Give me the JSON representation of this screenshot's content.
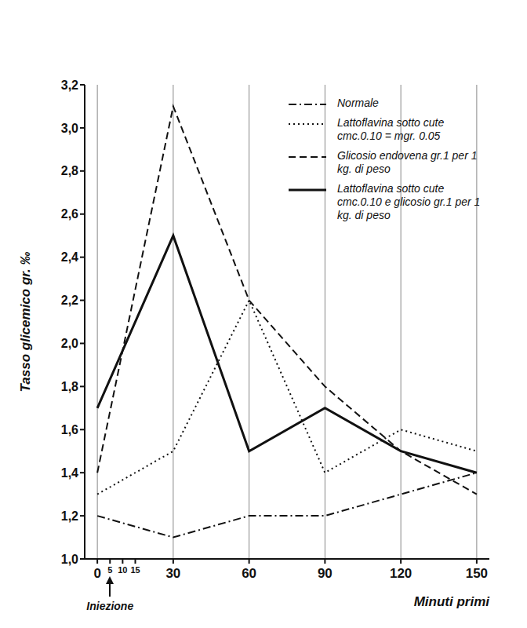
{
  "chart_data": {
    "type": "line",
    "x_label": "Minuti primi",
    "y_label": "Tasso glicemico gr. ‰",
    "x": [
      0,
      30,
      60,
      90,
      120,
      150
    ],
    "series": [
      {
        "name": "Normale",
        "color": "#111111",
        "line_style": "dash-dot",
        "values": [
          1.2,
          1.1,
          1.2,
          1.2,
          1.3,
          1.4
        ]
      },
      {
        "name": "Lattoflavina sotto cute cmc.0.10 = mgr. 0.05",
        "color": "#111111",
        "line_style": "dotted",
        "values": [
          1.3,
          1.5,
          2.2,
          1.4,
          1.6,
          1.5
        ]
      },
      {
        "name": "Glicosio endovena gr.1 per 1 kg. di peso",
        "color": "#111111",
        "line_style": "dashed",
        "values": [
          1.4,
          3.1,
          2.2,
          1.8,
          1.5,
          1.3
        ]
      },
      {
        "name": "Lattoflavina sotto cute cmc.0.10 e glicosio gr.1 per 1 kg. di peso",
        "color": "#111111",
        "line_style": "solid",
        "values": [
          1.7,
          2.5,
          1.5,
          1.7,
          1.5,
          1.4
        ]
      }
    ],
    "xlim": [
      -5,
      155
    ],
    "xticks": [
      0,
      5,
      10,
      15,
      30,
      60,
      90,
      120,
      150
    ],
    "ylim": [
      1.0,
      3.2
    ],
    "yticks": [
      {
        "value": 1.0,
        "label": "1,0"
      },
      {
        "value": 1.2,
        "label": "1,2"
      },
      {
        "value": 1.4,
        "label": "1,4"
      },
      {
        "value": 1.6,
        "label": "1,6"
      },
      {
        "value": 1.8,
        "label": "1,8"
      },
      {
        "value": 2.0,
        "label": "2,0"
      },
      {
        "value": 2.2,
        "label": "2,2"
      },
      {
        "value": 2.4,
        "label": "2,4"
      },
      {
        "value": 2.6,
        "label": "2,6"
      },
      {
        "value": 2.8,
        "label": "2,8"
      },
      {
        "value": 3.0,
        "label": "3,0"
      },
      {
        "value": 3.2,
        "label": "3,2"
      }
    ],
    "grid": "x",
    "legend": "upper right",
    "annotations": [
      {
        "text": "Iniezione",
        "x": 5
      }
    ]
  }
}
